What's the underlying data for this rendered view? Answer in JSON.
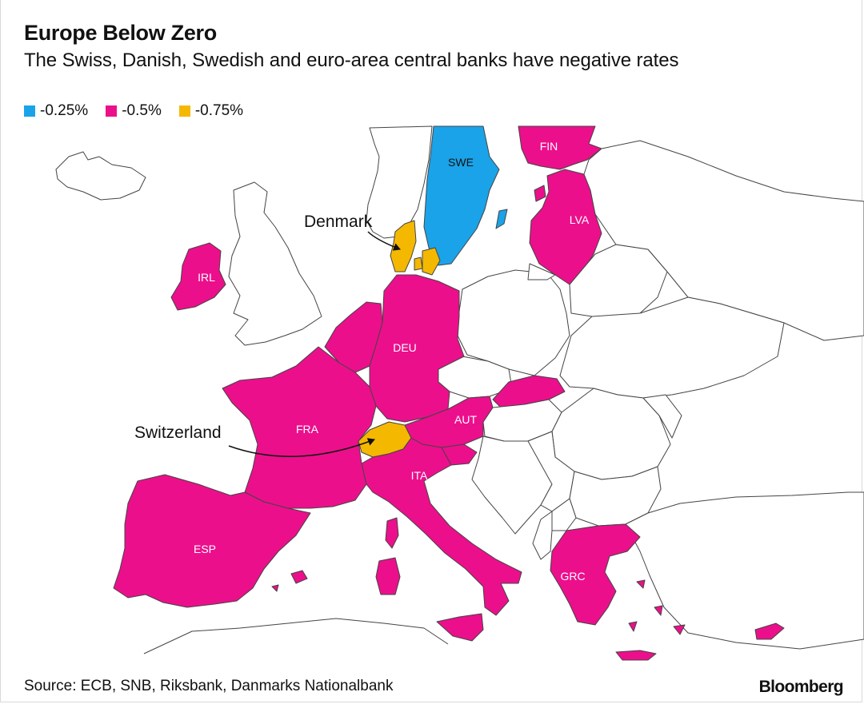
{
  "title": "Europe Below Zero",
  "subtitle": "The Swiss, Danish, Swedish and euro-area central banks have negative rates",
  "legend": [
    {
      "label": "-0.25%",
      "color": "#1aa3e8"
    },
    {
      "label": "-0.5%",
      "color": "#ec0f8c"
    },
    {
      "label": "-0.75%",
      "color": "#f5b800"
    }
  ],
  "colors": {
    "neutral": "#ffffff",
    "border": "#444444"
  },
  "country_labels": {
    "swe": "SWE",
    "fin": "FIN",
    "lva": "LVA",
    "irl": "IRL",
    "deu": "DEU",
    "fra": "FRA",
    "aut": "AUT",
    "ita": "ITA",
    "esp": "ESP",
    "grc": "GRC"
  },
  "annotations": {
    "denmark": "Denmark",
    "switzerland": "Switzerland"
  },
  "source": "Source: ECB, SNB, Riksbank, Danmarks Nationalbank",
  "brand": "Bloomberg"
}
